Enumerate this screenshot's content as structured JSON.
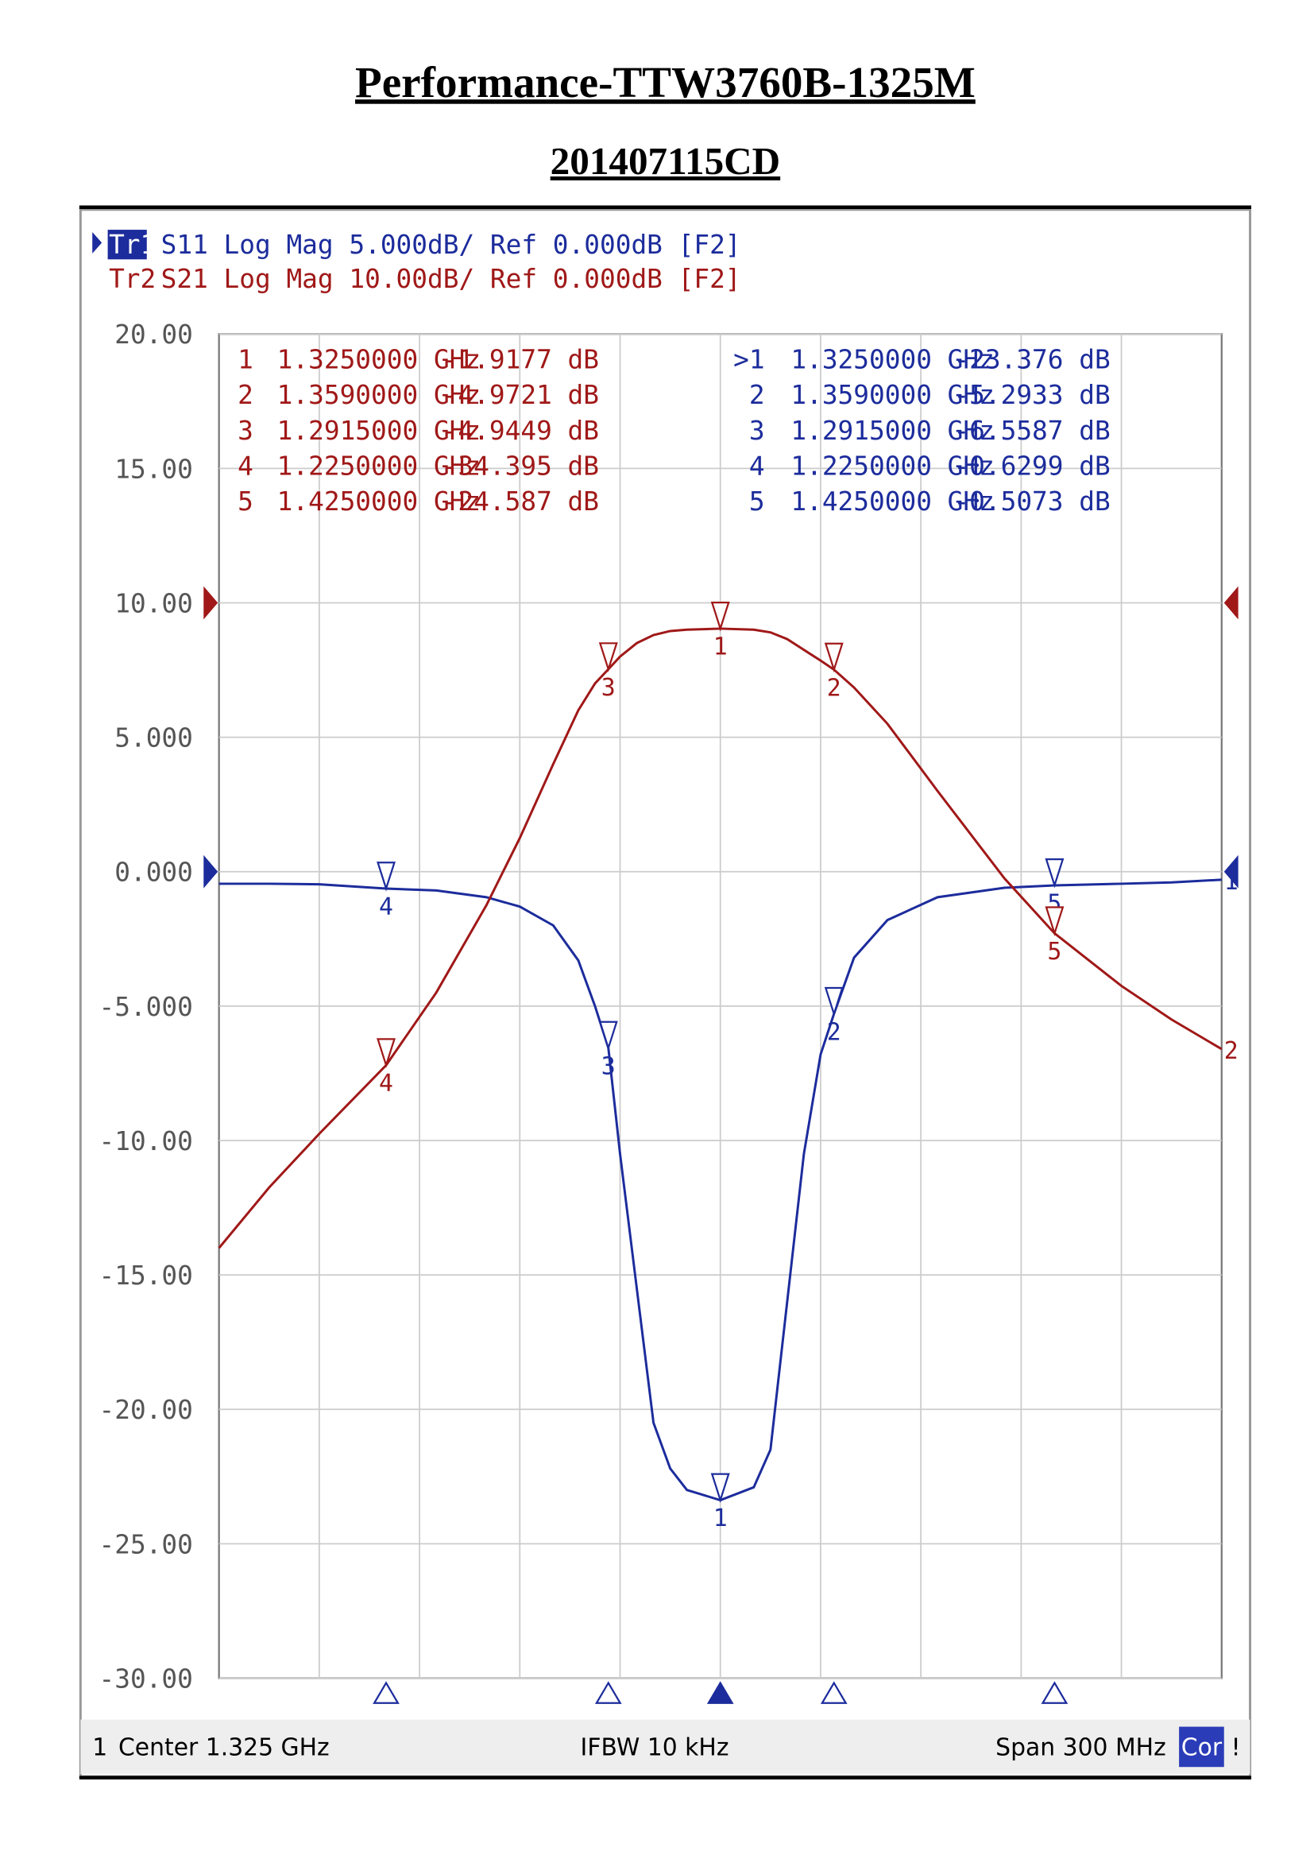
{
  "chart_data": {
    "type": "line",
    "title": "Performance-TTW3760B-1325M",
    "subtitle": "201407115CD",
    "xlim": [
      1.175,
      1.475
    ],
    "ylim": [
      -30,
      20
    ],
    "yticks": [
      {
        "value": 20,
        "label": "20.00"
      },
      {
        "value": 15,
        "label": "15.00"
      },
      {
        "value": 10,
        "label": "10.00"
      },
      {
        "value": 5,
        "label": "5.000"
      },
      {
        "value": 0,
        "label": "0.000"
      },
      {
        "value": -5,
        "label": "-5.000"
      },
      {
        "value": -10,
        "label": "-10.00"
      },
      {
        "value": -15,
        "label": "-15.00"
      },
      {
        "value": -20,
        "label": "-20.00"
      },
      {
        "value": -25,
        "label": "-25.00"
      },
      {
        "value": -30,
        "label": "-30.00"
      }
    ],
    "y2lim": [
      -80,
      20
    ],
    "grid": true,
    "x": [
      1.175,
      1.19,
      1.205,
      1.225,
      1.24,
      1.255,
      1.265,
      1.275,
      1.2825,
      1.2875,
      1.2915,
      1.295,
      1.3,
      1.305,
      1.31,
      1.315,
      1.325,
      1.335,
      1.34,
      1.345,
      1.35,
      1.355,
      1.359,
      1.365,
      1.375,
      1.39,
      1.41,
      1.425,
      1.445,
      1.46,
      1.475
    ],
    "series": [
      {
        "name": "Tr1",
        "header": "S11 Log Mag 5.000dB/ Ref 0.000dB [F2]",
        "end_label": "1",
        "color": "#1c2c9c",
        "values": [
          -0.45,
          -0.45,
          -0.47,
          -0.63,
          -0.7,
          -0.95,
          -1.3,
          -2.0,
          -3.3,
          -5.0,
          -6.56,
          -10.5,
          -15.5,
          -20.5,
          -22.2,
          -23.0,
          -23.38,
          -22.9,
          -21.5,
          -16.0,
          -10.5,
          -6.8,
          -5.29,
          -3.2,
          -1.8,
          -0.95,
          -0.6,
          -0.51,
          -0.45,
          -0.4,
          -0.3
        ],
        "markers": [
          {
            "id": ">1",
            "tag": "1",
            "x": 1.325,
            "x_label": "1.3250000 GHz",
            "value": -23.376,
            "value_label": "-23.376 dB"
          },
          {
            "id": "2",
            "tag": "2",
            "x": 1.359,
            "x_label": "1.3590000 GHz",
            "value": -5.2933,
            "value_label": "-5.2933 dB"
          },
          {
            "id": "3",
            "tag": "3",
            "x": 1.2915,
            "x_label": "1.2915000 GHz",
            "value": -6.5587,
            "value_label": "-6.5587 dB"
          },
          {
            "id": "4",
            "tag": "4",
            "x": 1.225,
            "x_label": "1.2250000 GHz",
            "value": -0.6299,
            "value_label": "-0.6299 dB"
          },
          {
            "id": "5",
            "tag": "5",
            "x": 1.425,
            "x_label": "1.4250000 GHz",
            "value": -0.5073,
            "value_label": "-0.5073 dB"
          }
        ]
      },
      {
        "name": "Tr2",
        "header": "S21 Log Mag 10.00dB/ Ref 0.000dB [F2]",
        "end_label": "2",
        "color": "#a01818",
        "axis": "y2",
        "values": [
          -48,
          -43.5,
          -39.5,
          -34.4,
          -29,
          -22.5,
          -17.5,
          -12,
          -8,
          -6,
          -4.94,
          -4,
          -3,
          -2.4,
          -2.1,
          -2.0,
          -1.92,
          -2.0,
          -2.2,
          -2.7,
          -3.5,
          -4.3,
          -4.97,
          -6.3,
          -9,
          -14,
          -20.5,
          -24.59,
          -28.5,
          -31,
          -33.2
        ],
        "markers": [
          {
            "id": "1",
            "tag": "1",
            "x": 1.325,
            "x_label": "1.3250000 GHz",
            "value": -1.9177,
            "value_label": "-1.9177 dB"
          },
          {
            "id": "2",
            "tag": "2",
            "x": 1.359,
            "x_label": "1.3590000 GHz",
            "value": -4.9721,
            "value_label": "-4.9721 dB"
          },
          {
            "id": "3",
            "tag": "3",
            "x": 1.2915,
            "x_label": "1.2915000 GHz",
            "value": -4.9449,
            "value_label": "-4.9449 dB"
          },
          {
            "id": "4",
            "tag": "4",
            "x": 1.225,
            "x_label": "1.2250000 GHz",
            "value": -34.395,
            "value_label": "-34.395 dB"
          },
          {
            "id": "5",
            "tag": "5",
            "x": 1.425,
            "x_label": "1.4250000 GHz",
            "value": -24.587,
            "value_label": "-24.587 dB"
          }
        ]
      }
    ],
    "footer": {
      "channel": "1",
      "center": "Center 1.325 GHz",
      "ifbw": "IFBW 10 kHz",
      "span": "Span 300 MHz",
      "cor": "Cor",
      "flag": "!"
    }
  }
}
